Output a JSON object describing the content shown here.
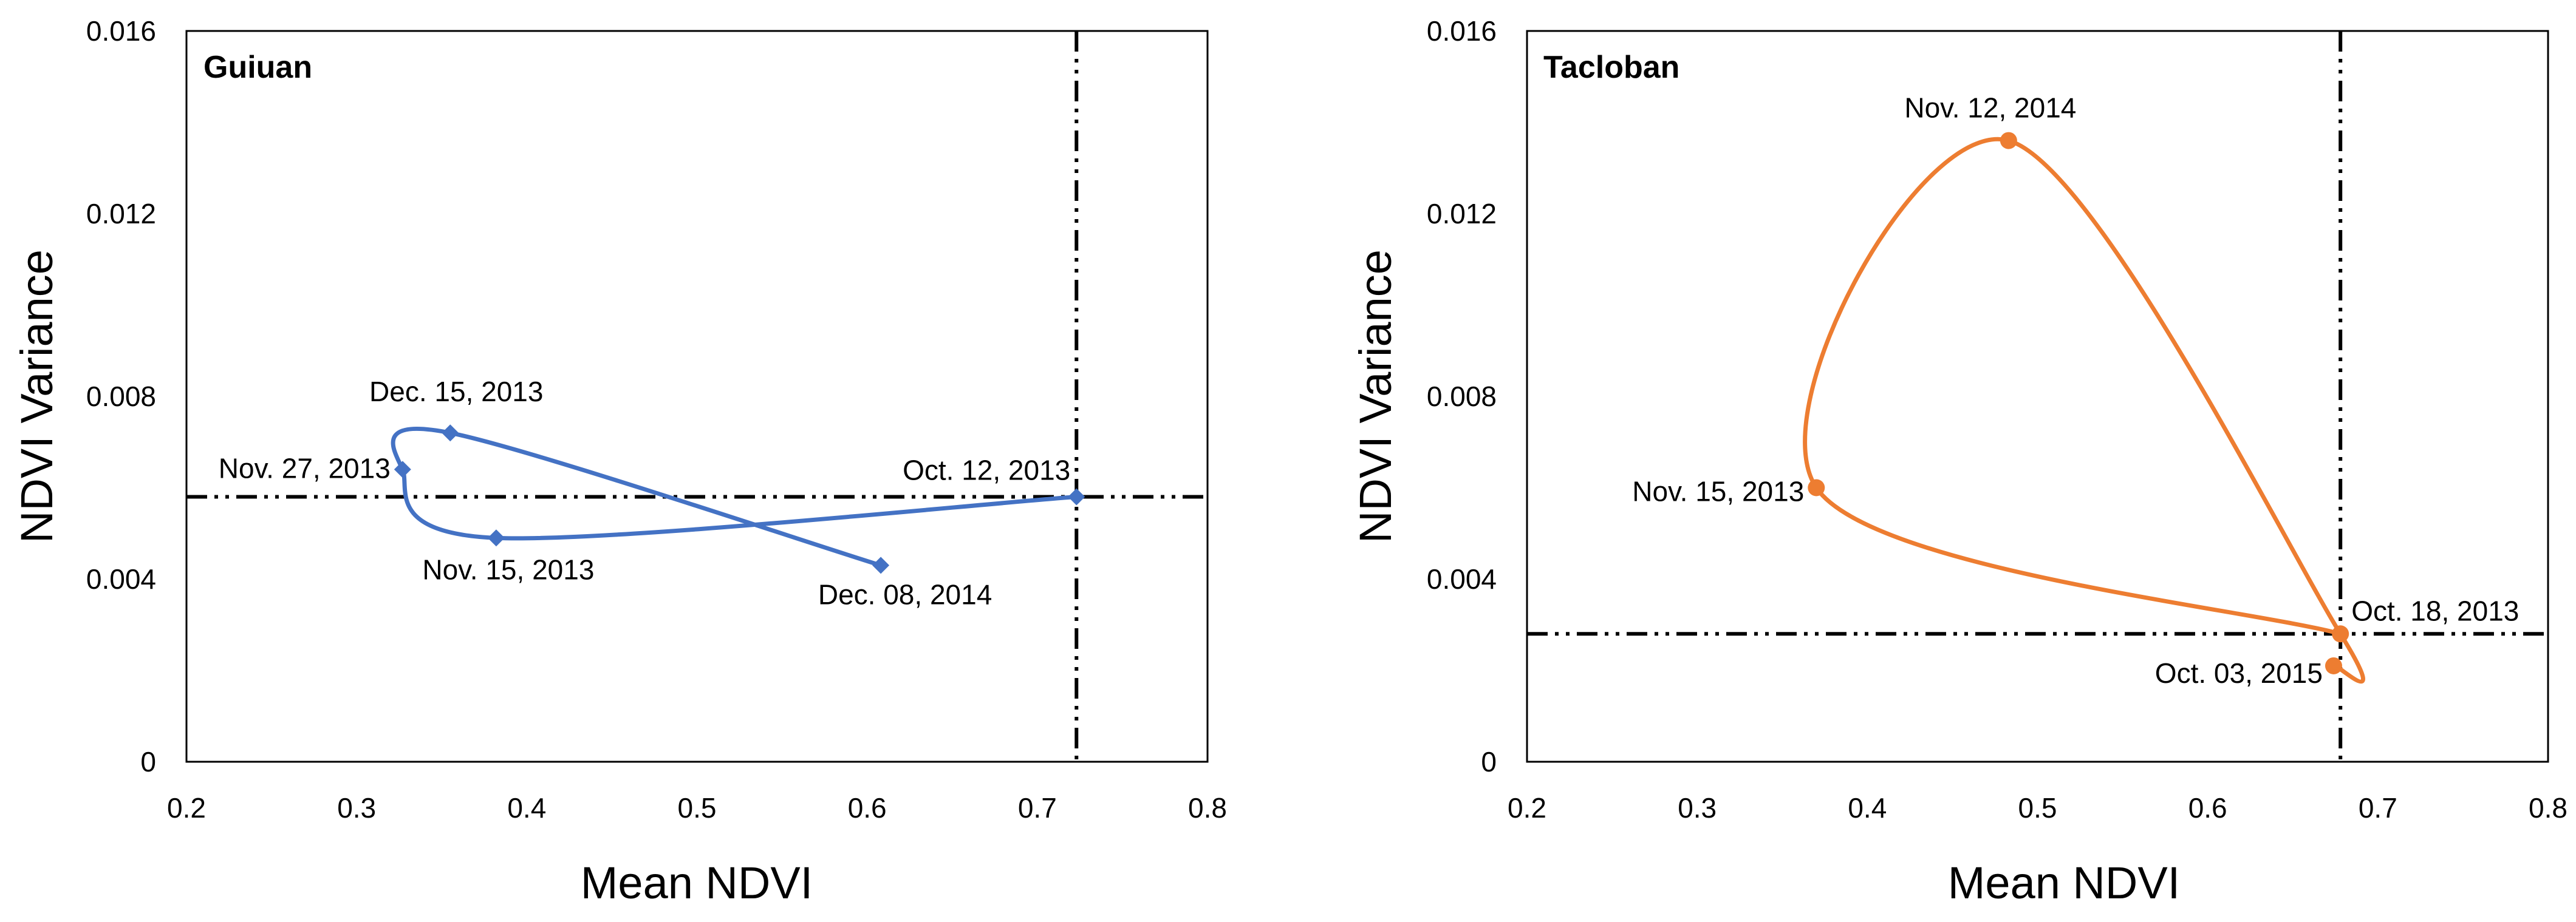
{
  "chart_data": [
    {
      "type": "line",
      "title": "Guiuan",
      "xlabel": "Mean NDVI",
      "ylabel": "NDVI Variance",
      "xlim": [
        0.2,
        0.8
      ],
      "ylim": [
        0,
        0.016
      ],
      "xticks": [
        "0.2",
        "0.3",
        "0.4",
        "0.5",
        "0.6",
        "0.7",
        "0.8"
      ],
      "yticks": [
        "0",
        "0.004",
        "0.008",
        "0.012",
        "0.016"
      ],
      "grid": false,
      "color": "#4472C4",
      "marker": "diamond",
      "points": [
        {
          "label": "Oct. 12, 2013",
          "x": 0.723,
          "y": 0.0058
        },
        {
          "label": "Nov. 15, 2013",
          "x": 0.382,
          "y": 0.0049
        },
        {
          "label": "Nov. 27, 2013",
          "x": 0.327,
          "y": 0.0064
        },
        {
          "label": "Dec. 15, 2013",
          "x": 0.355,
          "y": 0.0072
        },
        {
          "label": "Dec. 08, 2014",
          "x": 0.608,
          "y": 0.0043
        }
      ],
      "reference_lines": {
        "x": 0.723,
        "y": 0.0058
      }
    },
    {
      "type": "line",
      "title": "Tacloban",
      "xlabel": "Mean NDVI",
      "ylabel": "NDVI Variance",
      "xlim": [
        0.2,
        0.8
      ],
      "ylim": [
        0,
        0.016
      ],
      "xticks": [
        "0.2",
        "0.3",
        "0.4",
        "0.5",
        "0.6",
        "0.7",
        "0.8"
      ],
      "yticks": [
        "0",
        "0.004",
        "0.008",
        "0.012",
        "0.016"
      ],
      "grid": false,
      "color": "#ED7D31",
      "marker": "circle",
      "points": [
        {
          "label": "Oct. 18, 2013",
          "x": 0.678,
          "y": 0.0028
        },
        {
          "label": "Nov. 15, 2013",
          "x": 0.37,
          "y": 0.006
        },
        {
          "label": "Nov. 12, 2014",
          "x": 0.483,
          "y": 0.0136
        },
        {
          "label": "Oct. 03, 2015",
          "x": 0.674,
          "y": 0.0021
        }
      ],
      "reference_lines": {
        "x": 0.678,
        "y": 0.0028
      }
    }
  ]
}
